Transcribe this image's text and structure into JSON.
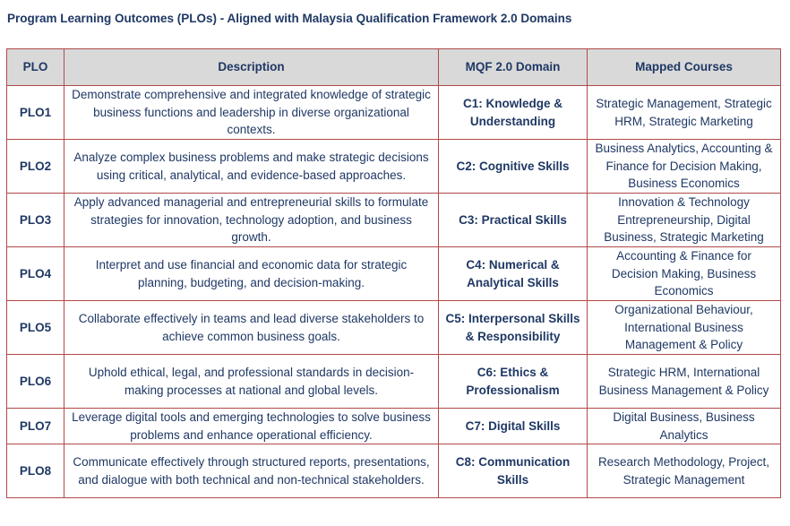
{
  "title": "Program Learning Outcomes (PLOs) - Aligned with Malaysia Qualification Framework 2.0 Domains",
  "headers": [
    "PLO",
    "Description",
    "MQF 2.0 Domain",
    "Mapped Courses"
  ],
  "rows": [
    {
      "plo": "PLO1",
      "description": "Demonstrate comprehensive and integrated knowledge of strategic business functions and leadership in diverse organizational contexts.",
      "domain": "C1: Knowledge & Understanding",
      "courses": "Strategic Management, Strategic HRM, Strategic Marketing"
    },
    {
      "plo": "PLO2",
      "description": "Analyze complex business problems and make strategic decisions using critical, analytical, and evidence-based approaches.",
      "domain": "C2: Cognitive Skills",
      "courses": "Business Analytics, Accounting & Finance for Decision Making, Business Economics"
    },
    {
      "plo": "PLO3",
      "description": "Apply advanced managerial and entrepreneurial skills to formulate strategies for innovation, technology adoption, and business growth.",
      "domain": "C3: Practical Skills",
      "courses": "Innovation & Technology Entrepreneurship, Digital Business, Strategic Marketing"
    },
    {
      "plo": "PLO4",
      "description": "Interpret and use financial and economic data for strategic planning, budgeting, and decision-making.",
      "domain": "C4: Numerical & Analytical Skills",
      "courses": "Accounting & Finance for Decision Making, Business Economics"
    },
    {
      "plo": "PLO5",
      "description": "Collaborate effectively in teams and lead diverse stakeholders to achieve common business goals.",
      "domain": "C5: Interpersonal Skills & Responsibility",
      "courses": "Organizational Behaviour, International Business Management & Policy"
    },
    {
      "plo": "PLO6",
      "description": "Uphold ethical, legal, and professional standards in decision-making processes at national and global levels.",
      "domain": "C6: Ethics & Professionalism",
      "courses": "Strategic HRM, International Business Management & Policy"
    },
    {
      "plo": "PLO7",
      "description": "Leverage digital tools and emerging technologies to solve business problems and enhance operational efficiency.",
      "domain": "C7: Digital Skills",
      "courses": "Digital Business, Business Analytics"
    },
    {
      "plo": "PLO8",
      "description": "Communicate effectively through structured reports, presentations, and dialogue with both technical and non-technical stakeholders.",
      "domain": "C8: Communication Skills",
      "courses": "Research Methodology, Project, Strategic Management"
    }
  ]
}
